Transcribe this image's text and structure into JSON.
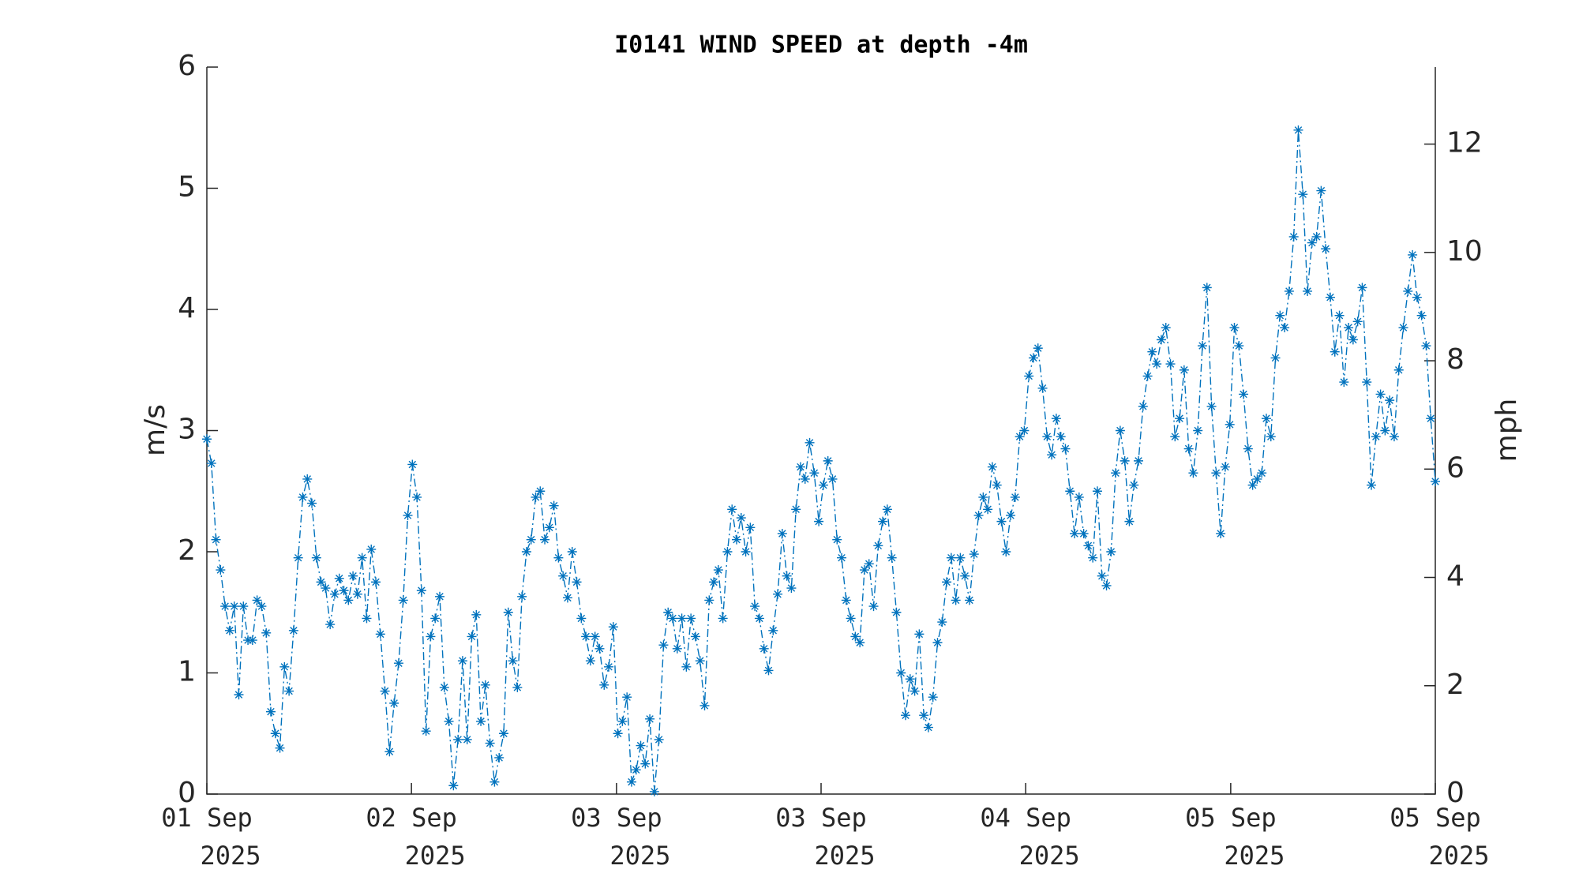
{
  "chart_data": {
    "type": "line",
    "title": "I0141 WIND SPEED at depth -4m",
    "ylabel": "m/s",
    "y2label": "mph",
    "marker": "asterisk",
    "line_style": "dashdot",
    "series": [
      {
        "color": "#0072bd",
        "values": [
          2.93,
          2.73,
          2.1,
          1.85,
          1.55,
          1.35,
          1.55,
          0.82,
          1.55,
          1.27,
          1.27,
          1.6,
          1.55,
          1.33,
          0.68,
          0.5,
          0.38,
          1.05,
          0.85,
          1.35,
          1.95,
          2.45,
          2.6,
          2.4,
          1.95,
          1.75,
          1.7,
          1.4,
          1.65,
          1.78,
          1.68,
          1.6,
          1.8,
          1.65,
          1.95,
          1.45,
          2.02,
          1.75,
          1.32,
          0.85,
          0.35,
          0.75,
          1.08,
          1.6,
          2.3,
          2.72,
          2.45,
          1.68,
          0.52,
          1.3,
          1.45,
          1.63,
          0.88,
          0.6,
          0.07,
          0.45,
          1.1,
          0.45,
          1.3,
          1.48,
          0.6,
          0.9,
          0.42,
          0.1,
          0.3,
          0.5,
          1.5,
          1.1,
          0.88,
          1.63,
          2.0,
          2.1,
          2.45,
          2.5,
          2.1,
          2.2,
          2.38,
          1.95,
          1.8,
          1.62,
          2.0,
          1.75,
          1.45,
          1.3,
          1.1,
          1.3,
          1.2,
          0.9,
          1.05,
          1.38,
          0.5,
          0.6,
          0.8,
          0.1,
          0.2,
          0.4,
          0.25,
          0.62,
          0.02,
          0.45,
          1.23,
          1.5,
          1.45,
          1.2,
          1.45,
          1.05,
          1.45,
          1.3,
          1.1,
          0.73,
          1.6,
          1.75,
          1.85,
          1.45,
          2.0,
          2.35,
          2.1,
          2.28,
          2.0,
          2.2,
          1.55,
          1.45,
          1.2,
          1.02,
          1.35,
          1.65,
          2.15,
          1.8,
          1.7,
          2.35,
          2.7,
          2.6,
          2.9,
          2.65,
          2.25,
          2.55,
          2.75,
          2.6,
          2.1,
          1.95,
          1.6,
          1.45,
          1.3,
          1.25,
          1.85,
          1.9,
          1.55,
          2.05,
          2.25,
          2.35,
          1.95,
          1.5,
          1.0,
          0.65,
          0.95,
          0.85,
          1.32,
          0.65,
          0.55,
          0.8,
          1.25,
          1.42,
          1.75,
          1.95,
          1.6,
          1.95,
          1.8,
          1.6,
          1.98,
          2.3,
          2.45,
          2.35,
          2.7,
          2.55,
          2.25,
          2.0,
          2.3,
          2.45,
          2.95,
          3.0,
          3.45,
          3.6,
          3.68,
          3.35,
          2.95,
          2.8,
          3.1,
          2.95,
          2.85,
          2.5,
          2.15,
          2.45,
          2.15,
          2.05,
          1.95,
          2.5,
          1.8,
          1.72,
          2.0,
          2.65,
          3.0,
          2.75,
          2.25,
          2.55,
          2.75,
          3.2,
          3.45,
          3.65,
          3.55,
          3.75,
          3.85,
          3.55,
          2.95,
          3.1,
          3.5,
          2.85,
          2.65,
          3.0,
          3.7,
          4.18,
          3.2,
          2.65,
          2.15,
          2.7,
          3.05,
          3.85,
          3.7,
          3.3,
          2.85,
          2.55,
          2.6,
          2.65,
          3.1,
          2.95,
          3.6,
          3.95,
          3.85,
          4.15,
          4.6,
          5.48,
          4.95,
          4.15,
          4.55,
          4.6,
          4.98,
          4.5,
          4.1,
          3.65,
          3.95,
          3.4,
          3.85,
          3.75,
          3.9,
          4.18,
          3.4,
          2.55,
          2.95,
          3.3,
          3.0,
          3.25,
          2.95,
          3.5,
          3.85,
          4.15,
          4.45,
          4.1,
          3.95,
          3.7,
          3.1,
          2.58
        ]
      }
    ],
    "xlim": [
      0,
      269
    ],
    "xticks": [
      {
        "value": 0,
        "label": [
          "01 Sep",
          "2025"
        ]
      },
      {
        "value": 44.8,
        "label": [
          "02 Sep",
          "2025"
        ]
      },
      {
        "value": 89.7,
        "label": [
          "03 Sep",
          "2025"
        ]
      },
      {
        "value": 134.5,
        "label": [
          "03 Sep",
          "2025"
        ]
      },
      {
        "value": 179.3,
        "label": [
          "04 Sep",
          "2025"
        ]
      },
      {
        "value": 224.2,
        "label": [
          "05 Sep",
          "2025"
        ]
      },
      {
        "value": 269,
        "label": [
          "05 Sep",
          "2025"
        ]
      }
    ],
    "ylim": [
      0,
      6
    ],
    "yticks": [
      0,
      1,
      2,
      3,
      4,
      5,
      6
    ],
    "y2lim": [
      0,
      13.4216
    ],
    "y2ticks": [
      0,
      2,
      4,
      6,
      8,
      10,
      12
    ],
    "grid": false
  }
}
